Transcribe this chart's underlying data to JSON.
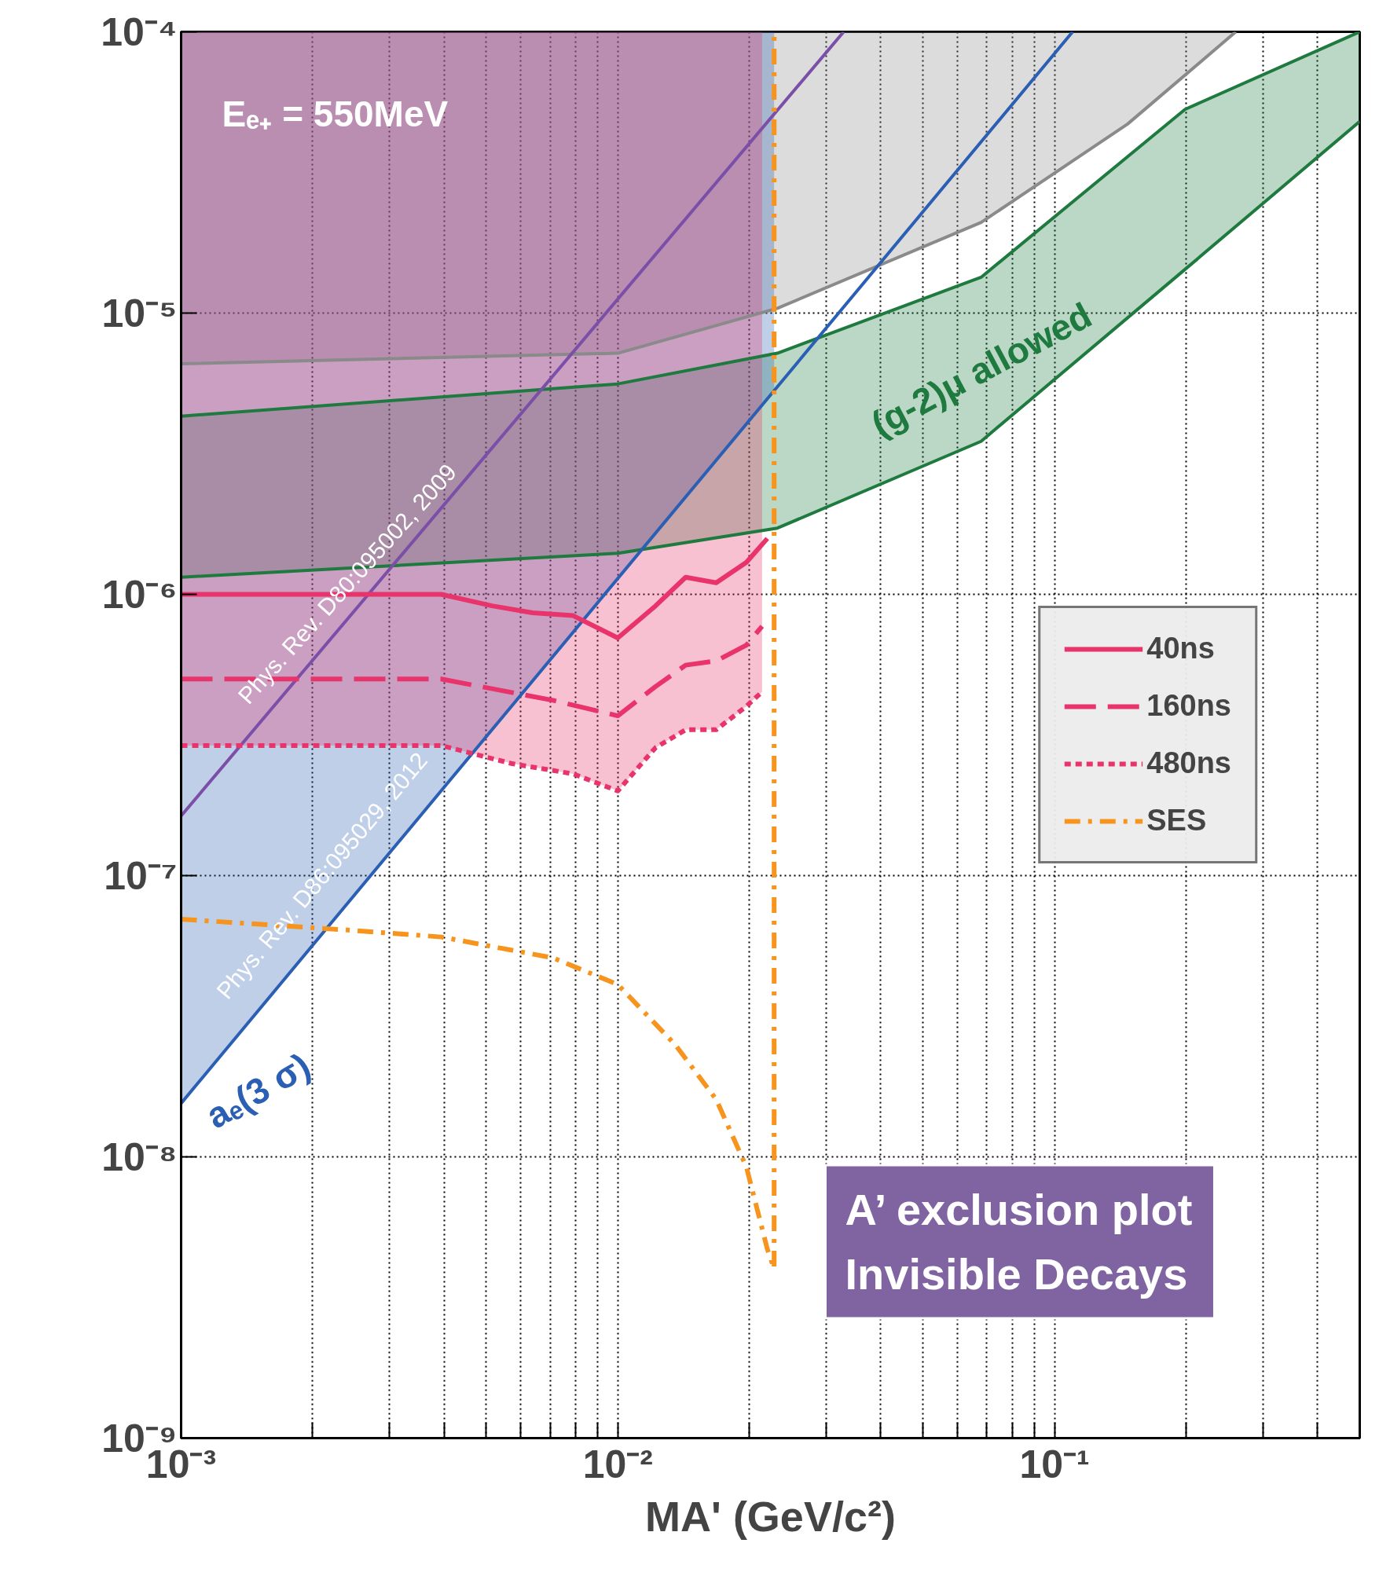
{
  "chart_data": {
    "type": "line",
    "xlabel": "MA' (GeV/c²)",
    "log": "xy",
    "xlim": [
      0.001,
      0.5
    ],
    "ylim": [
      1e-09,
      0.0001
    ],
    "xticks": [
      {
        "value": 0.001,
        "label": "10⁻³"
      },
      {
        "value": 0.002,
        "label": null
      },
      {
        "value": 0.003,
        "label": null
      },
      {
        "value": 0.004,
        "label": null
      },
      {
        "value": 0.005,
        "label": null
      },
      {
        "value": 0.006,
        "label": null
      },
      {
        "value": 0.007,
        "label": null
      },
      {
        "value": 0.008,
        "label": null
      },
      {
        "value": 0.009,
        "label": null
      },
      {
        "value": 0.01,
        "label": "10⁻²"
      },
      {
        "value": 0.02,
        "label": null
      },
      {
        "value": 0.03,
        "label": null
      },
      {
        "value": 0.04,
        "label": null
      },
      {
        "value": 0.05,
        "label": null
      },
      {
        "value": 0.06,
        "label": null
      },
      {
        "value": 0.07,
        "label": null
      },
      {
        "value": 0.08,
        "label": null
      },
      {
        "value": 0.09,
        "label": null
      },
      {
        "value": 0.1,
        "label": "10⁻¹"
      },
      {
        "value": 0.2,
        "label": null
      },
      {
        "value": 0.3,
        "label": null
      },
      {
        "value": 0.4,
        "label": null
      }
    ],
    "yticks": [
      {
        "value": 1e-09,
        "label": "10⁻⁹"
      },
      {
        "value": 1e-08,
        "label": "10⁻⁸"
      },
      {
        "value": 1e-07,
        "label": "10⁻⁷"
      },
      {
        "value": 1e-06,
        "label": "10⁻⁶"
      },
      {
        "value": 1e-05,
        "label": "10⁻⁵"
      },
      {
        "value": 0.0001,
        "label": "10⁻⁴"
      }
    ],
    "grid": true,
    "legend": "right",
    "series": [
      {
        "color": "#8a8a8a",
        "line_style": "solid",
        "x": [
          0.001,
          0.01,
          0.0232,
          0.0679,
          0.147,
          0.26
        ],
        "values": [
          6.6e-06,
          7.2e-06,
          1.04e-05,
          2.1e-05,
          4.7e-05,
          0.0001
        ],
        "lower": [
          6.6e-06,
          7.2e-06,
          1.04e-05,
          2.1e-05,
          4.7e-05,
          0.0001
        ],
        "upper": [
          0.0001,
          0.0001,
          0.0001,
          0.0001,
          0.0001,
          0.0001
        ]
      },
      {
        "color": "#1e7a3e",
        "line_style": "solid",
        "x": [
          0.001,
          0.01,
          0.0232,
          0.0679,
          0.199,
          0.5
        ],
        "values": [
          4.3e-06,
          5.6e-06,
          7.2e-06,
          1.34e-05,
          5.3e-05,
          0.0001
        ],
        "lower": [
          1.15e-06,
          1.4e-06,
          1.72e-06,
          3.5e-06,
          1.43e-05,
          4.8e-05
        ],
        "upper": [
          4.3e-06,
          5.6e-06,
          7.2e-06,
          1.34e-05,
          5.3e-05,
          0.0001
        ]
      },
      {
        "color": "#1e7a3e",
        "line_style": "solid",
        "x": [
          0.001,
          0.01,
          0.0232,
          0.0679,
          0.199,
          0.5
        ],
        "values": [
          1.15e-06,
          1.4e-06,
          1.72e-06,
          3.5e-06,
          1.43e-05,
          4.8e-05
        ]
      },
      {
        "color": "#7b4fa8",
        "line_style": "solid",
        "x": [
          0.001,
          0.0329
        ],
        "values": [
          1.63e-07,
          0.0001
        ]
      },
      {
        "color": "#2b5fb4",
        "line_style": "solid",
        "x": [
          0.001,
          0.0228,
          0.11
        ],
        "values": [
          1.55e-08,
          5.3e-06,
          0.0001
        ],
        "lower": [
          1.55e-08,
          5.3e-06,
          null
        ],
        "upper": [
          0.0001,
          0.0001,
          null
        ]
      },
      {
        "name": "40ns",
        "color": "#e8336b",
        "line_style": "solid",
        "x": [
          0.001,
          0.00394,
          0.00515,
          0.00638,
          0.0079,
          0.01,
          0.0122,
          0.0143,
          0.0168,
          0.0197,
          0.022
        ],
        "values": [
          1e-06,
          1e-06,
          9.1e-07,
          8.6e-07,
          8.4e-07,
          7e-07,
          9.1e-07,
          1.15e-06,
          1.1e-06,
          1.3e-06,
          1.58e-06
        ]
      },
      {
        "name": "160ns",
        "color": "#e8336b",
        "line_style": "dashed",
        "x": [
          0.001,
          0.00394,
          0.0071,
          0.01,
          0.0122,
          0.0143,
          0.0168,
          0.0197,
          0.0214
        ],
        "values": [
          5e-07,
          5e-07,
          4.2e-07,
          3.7e-07,
          4.7e-07,
          5.6e-07,
          5.8e-07,
          6.6e-07,
          7.7e-07
        ]
      },
      {
        "name": "480ns",
        "color": "#e8336b",
        "line_style": "dotted",
        "x": [
          0.001,
          0.00394,
          0.00573,
          0.0079,
          0.01,
          0.0122,
          0.0143,
          0.0168,
          0.0197,
          0.0214
        ],
        "values": [
          2.9e-07,
          2.9e-07,
          2.5e-07,
          2.3e-07,
          2e-07,
          2.85e-07,
          3.3e-07,
          3.3e-07,
          4e-07,
          4.5e-07
        ],
        "lower": [
          2.9e-07,
          2.9e-07,
          2.5e-07,
          2.3e-07,
          2e-07,
          2.85e-07,
          3.3e-07,
          3.3e-07,
          4e-07,
          4.5e-07
        ],
        "upper": [
          0.0001,
          0.0001,
          0.0001,
          0.0001,
          0.0001,
          0.0001,
          0.0001,
          0.0001,
          0.0001,
          0.0001
        ]
      },
      {
        "name": "SES",
        "color": "#f7941d",
        "line_style": "dashdot",
        "x": [
          0.001,
          0.00243,
          0.00394,
          0.0071,
          0.01,
          0.01355,
          0.0168,
          0.0197,
          0.022,
          0.0228,
          0.0228
        ],
        "values": [
          7e-08,
          6.4e-08,
          6.05e-08,
          5.1e-08,
          4.1e-08,
          2.5e-08,
          1.6e-08,
          9.2e-09,
          4.7e-09,
          4e-09,
          0.0001
        ]
      }
    ],
    "annotations": [
      "Eₑ₊ = 550MeV",
      "Phys. Rev. D80:095002, 2009",
      "Phys. Rev. D86:095029, 2012",
      "aₑ(3 σ)",
      "(g-2)μ allowed",
      "A’ exclusion plot\nInvisible Decays"
    ]
  }
}
